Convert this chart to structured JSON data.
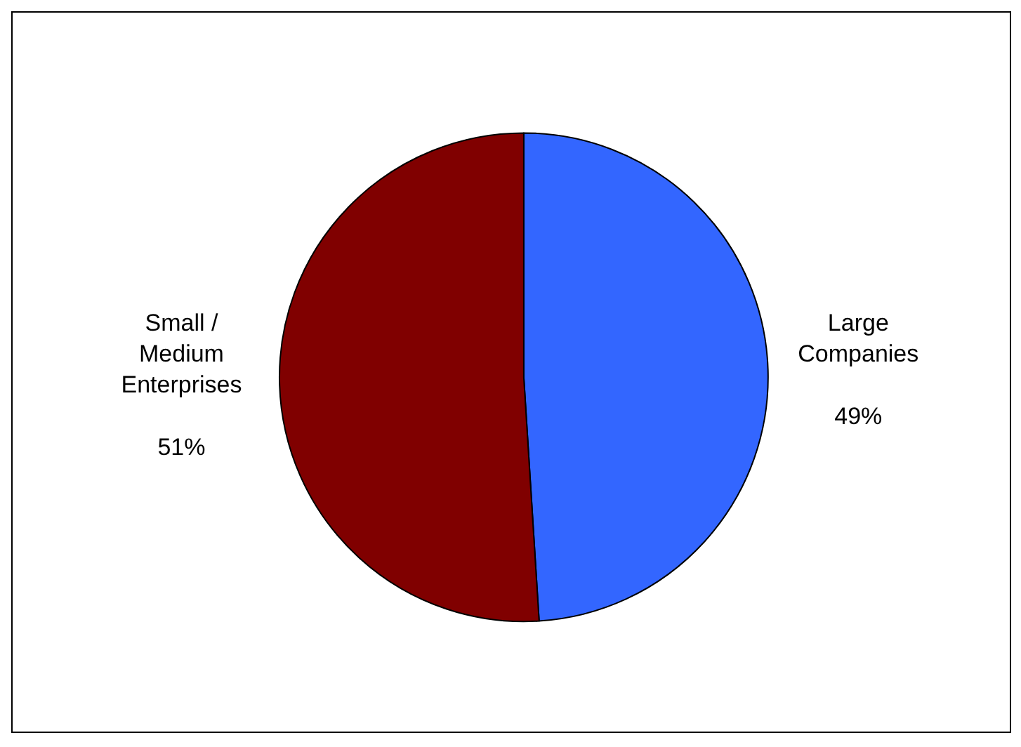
{
  "chart_data": {
    "type": "pie",
    "categories": [
      "Large Companies",
      "Small / Medium Enterprises"
    ],
    "values": [
      49,
      51
    ],
    "value_labels": [
      "49%",
      "51%"
    ],
    "colors": [
      "#3366ff",
      "#800000"
    ],
    "legend": false
  }
}
